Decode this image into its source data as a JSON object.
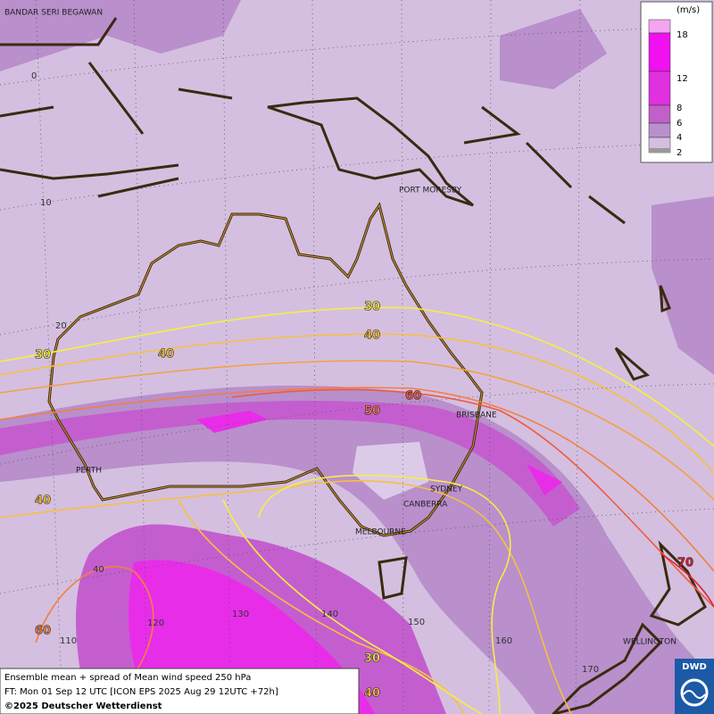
{
  "map": {
    "cities": [
      "BANDAR SERI BEGAWAN",
      "PORT MORESBY",
      "BRISBANE",
      "PERTH",
      "SYDNEY",
      "CANBERRA",
      "MELBOURNE",
      "WELLINGTON"
    ],
    "grid_labels": [
      "0",
      "10",
      "20",
      "40",
      "110",
      "120",
      "130",
      "140",
      "150",
      "160",
      "170"
    ],
    "contour_labels": [
      "30",
      "40",
      "30",
      "40",
      "60",
      "50",
      "40",
      "70",
      "60",
      "30",
      "40"
    ],
    "legend": {
      "unit": "(m/s)",
      "ticks": [
        "18",
        "12",
        "8",
        "6",
        "4",
        "2"
      ]
    },
    "footer": [
      "Ensemble mean + spread of Mean wind speed 250 hPa",
      "FT: Mon 01 Sep 12 UTC [ICON EPS 2025 Aug 29 12UTC +72h]",
      "©2025 Deutscher Wetterdienst"
    ],
    "logo": "DWD"
  }
}
